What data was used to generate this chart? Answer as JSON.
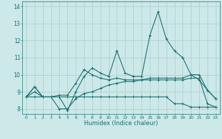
{
  "title": "",
  "xlabel": "Humidex (Indice chaleur)",
  "ylabel": "",
  "bg_color": "#cce8e8",
  "grid_color": "#aacccc",
  "line_color": "#1a6e6e",
  "x_values": [
    0,
    1,
    2,
    3,
    4,
    5,
    6,
    7,
    8,
    9,
    10,
    11,
    12,
    13,
    14,
    15,
    16,
    17,
    18,
    19,
    20,
    21,
    22,
    23
  ],
  "series1": [
    8.7,
    9.3,
    8.7,
    8.7,
    8.7,
    7.9,
    9.0,
    9.9,
    10.4,
    10.1,
    9.9,
    11.4,
    10.1,
    9.9,
    9.9,
    12.3,
    13.7,
    12.1,
    11.4,
    11.0,
    10.0,
    9.7,
    9.1,
    8.6
  ],
  "series2": [
    8.7,
    9.3,
    8.7,
    8.7,
    8.8,
    8.8,
    9.5,
    10.3,
    10.0,
    9.8,
    9.7,
    9.8,
    9.7,
    9.7,
    9.7,
    9.8,
    9.8,
    9.8,
    9.8,
    9.8,
    10.0,
    10.0,
    9.1,
    8.6
  ],
  "series3": [
    8.7,
    9.0,
    8.7,
    8.7,
    8.0,
    8.0,
    8.6,
    8.9,
    9.0,
    9.2,
    9.4,
    9.5,
    9.6,
    9.6,
    9.7,
    9.7,
    9.7,
    9.7,
    9.7,
    9.7,
    9.8,
    9.8,
    8.3,
    8.1
  ],
  "series4": [
    8.7,
    8.7,
    8.7,
    8.7,
    8.7,
    8.7,
    8.7,
    8.7,
    8.7,
    8.7,
    8.7,
    8.7,
    8.7,
    8.7,
    8.7,
    8.7,
    8.7,
    8.7,
    8.3,
    8.3,
    8.1,
    8.1,
    8.1,
    8.1
  ],
  "ylim": [
    7.7,
    14.3
  ],
  "xlim": [
    -0.5,
    23.5
  ],
  "yticks": [
    8,
    9,
    10,
    11,
    12,
    13,
    14
  ],
  "xticks": [
    0,
    1,
    2,
    3,
    4,
    5,
    6,
    7,
    8,
    9,
    10,
    11,
    12,
    13,
    14,
    15,
    16,
    17,
    18,
    19,
    20,
    21,
    22,
    23
  ]
}
